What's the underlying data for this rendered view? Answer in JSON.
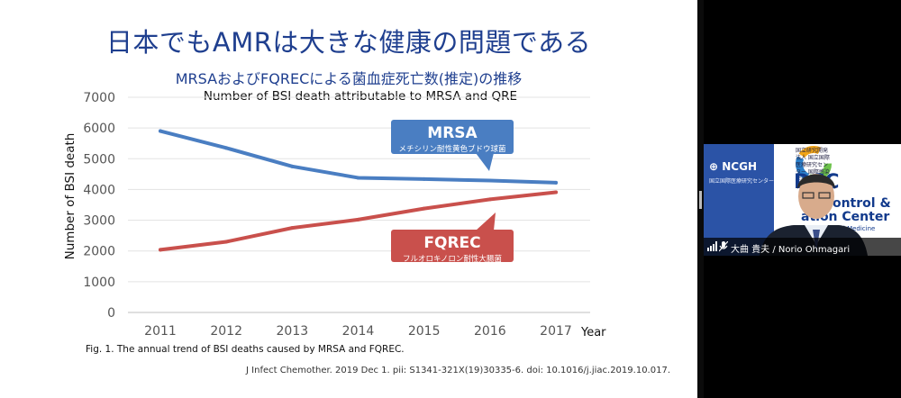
{
  "slide": {
    "title": "日本でもAMRは大きな健康の問題である",
    "subtitle_jp": "MRSAおよびFQRECによる菌血症死亡数(推定)の推移",
    "figure_caption": "Fig. 1. The annual trend of BSI deaths caused by MRSA and FQREC.",
    "citation": "J Infect Chemother. 2019 Dec 1. pii: S1341-321X(19)30335-6. doi: 10.1016/j.jiac.2019.10.017."
  },
  "chart_data": {
    "type": "line",
    "title": "Number of BSI death attributable to MRSA and QRE",
    "xlabel": "Year",
    "ylabel": "Number of BSI death",
    "x": [
      2011,
      2012,
      2013,
      2014,
      2015,
      2016,
      2017
    ],
    "ylim": [
      0,
      7000
    ],
    "yticks": [
      0,
      1000,
      2000,
      3000,
      4000,
      5000,
      6000,
      7000
    ],
    "grid": true,
    "series": [
      {
        "name": "MRSA",
        "name_jp": "メチシリン耐性黄色ブドウ球菌",
        "color": "#4a7ec2",
        "values": [
          5900,
          5350,
          4750,
          4380,
          4340,
          4290,
          4220
        ]
      },
      {
        "name": "FQREC",
        "name_jp": "フルオロキノロン耐性大腸菌",
        "color": "#c9504c",
        "values": [
          2040,
          2300,
          2750,
          3020,
          3380,
          3680,
          3910
        ]
      }
    ]
  },
  "video": {
    "speaker_name": "大曲 貴夫 / Norio Ohmagari",
    "org_left": "NCGH",
    "org_left_sub": "国立国際医療研究センター",
    "org_right_jp": "国立研究開発法人 国立国際医療研究センター 国際感染症センター",
    "org_right": "DCC",
    "org_right_line1": "se Control &",
    "org_right_line2": "ation Center",
    "org_right_line3": "al Health and Medicine"
  }
}
